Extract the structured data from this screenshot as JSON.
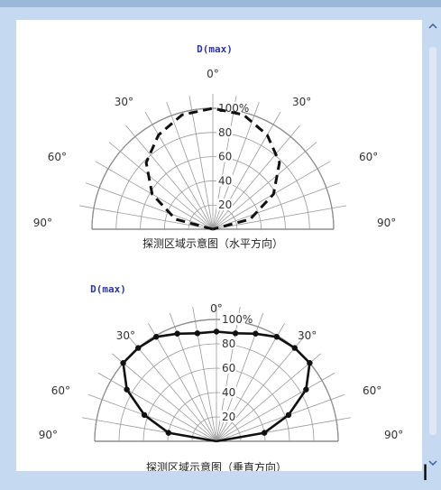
{
  "window": {
    "accent": "#c5d9f0"
  },
  "chart_data": [
    {
      "type": "polar",
      "title": "D(max)",
      "caption": "探测区域示意图（水平方向）",
      "radial_ticks": [
        "20",
        "40",
        "60",
        "80",
        "100%"
      ],
      "angle_labels": {
        "left": [
          "30°",
          "60°",
          "90°"
        ],
        "right": [
          "30°",
          "60°",
          "90°"
        ],
        "top": "0°"
      },
      "series": [
        {
          "style": "dashed",
          "points": [
            {
              "angle": -90,
              "r": 0
            },
            {
              "angle": -75,
              "r": 32
            },
            {
              "angle": -60,
              "r": 58
            },
            {
              "angle": -45,
              "r": 78
            },
            {
              "angle": -30,
              "r": 90
            },
            {
              "angle": -15,
              "r": 98
            },
            {
              "angle": 0,
              "r": 100
            },
            {
              "angle": 15,
              "r": 98
            },
            {
              "angle": 30,
              "r": 90
            },
            {
              "angle": 45,
              "r": 78
            },
            {
              "angle": 60,
              "r": 58
            },
            {
              "angle": 75,
              "r": 32
            },
            {
              "angle": 90,
              "r": 0
            }
          ]
        }
      ]
    },
    {
      "type": "polar",
      "title": "D(max)",
      "caption": "探测区域示意图（垂直方向）",
      "radial_ticks": [
        "20",
        "40",
        "60",
        "80",
        "100%"
      ],
      "angle_labels": {
        "left": [
          "30°",
          "60°",
          "90°"
        ],
        "right": [
          "30°",
          "60°",
          "90°"
        ],
        "top": "0°"
      },
      "series": [
        {
          "style": "solid-markers",
          "points": [
            {
              "angle": -90,
              "r": 0
            },
            {
              "angle": -80,
              "r": 40
            },
            {
              "angle": -70,
              "r": 63
            },
            {
              "angle": -60,
              "r": 85
            },
            {
              "angle": -50,
              "r": 100
            },
            {
              "angle": -40,
              "r": 100
            },
            {
              "angle": -30,
              "r": 99
            },
            {
              "angle": -20,
              "r": 94
            },
            {
              "angle": -10,
              "r": 90
            },
            {
              "angle": 0,
              "r": 90
            },
            {
              "angle": 10,
              "r": 90
            },
            {
              "angle": 20,
              "r": 94
            },
            {
              "angle": 30,
              "r": 99
            },
            {
              "angle": 40,
              "r": 100
            },
            {
              "angle": 50,
              "r": 100
            },
            {
              "angle": 60,
              "r": 85
            },
            {
              "angle": 70,
              "r": 63
            },
            {
              "angle": 80,
              "r": 40
            },
            {
              "angle": 90,
              "r": 0
            }
          ]
        }
      ]
    }
  ],
  "cursor_text": "I"
}
